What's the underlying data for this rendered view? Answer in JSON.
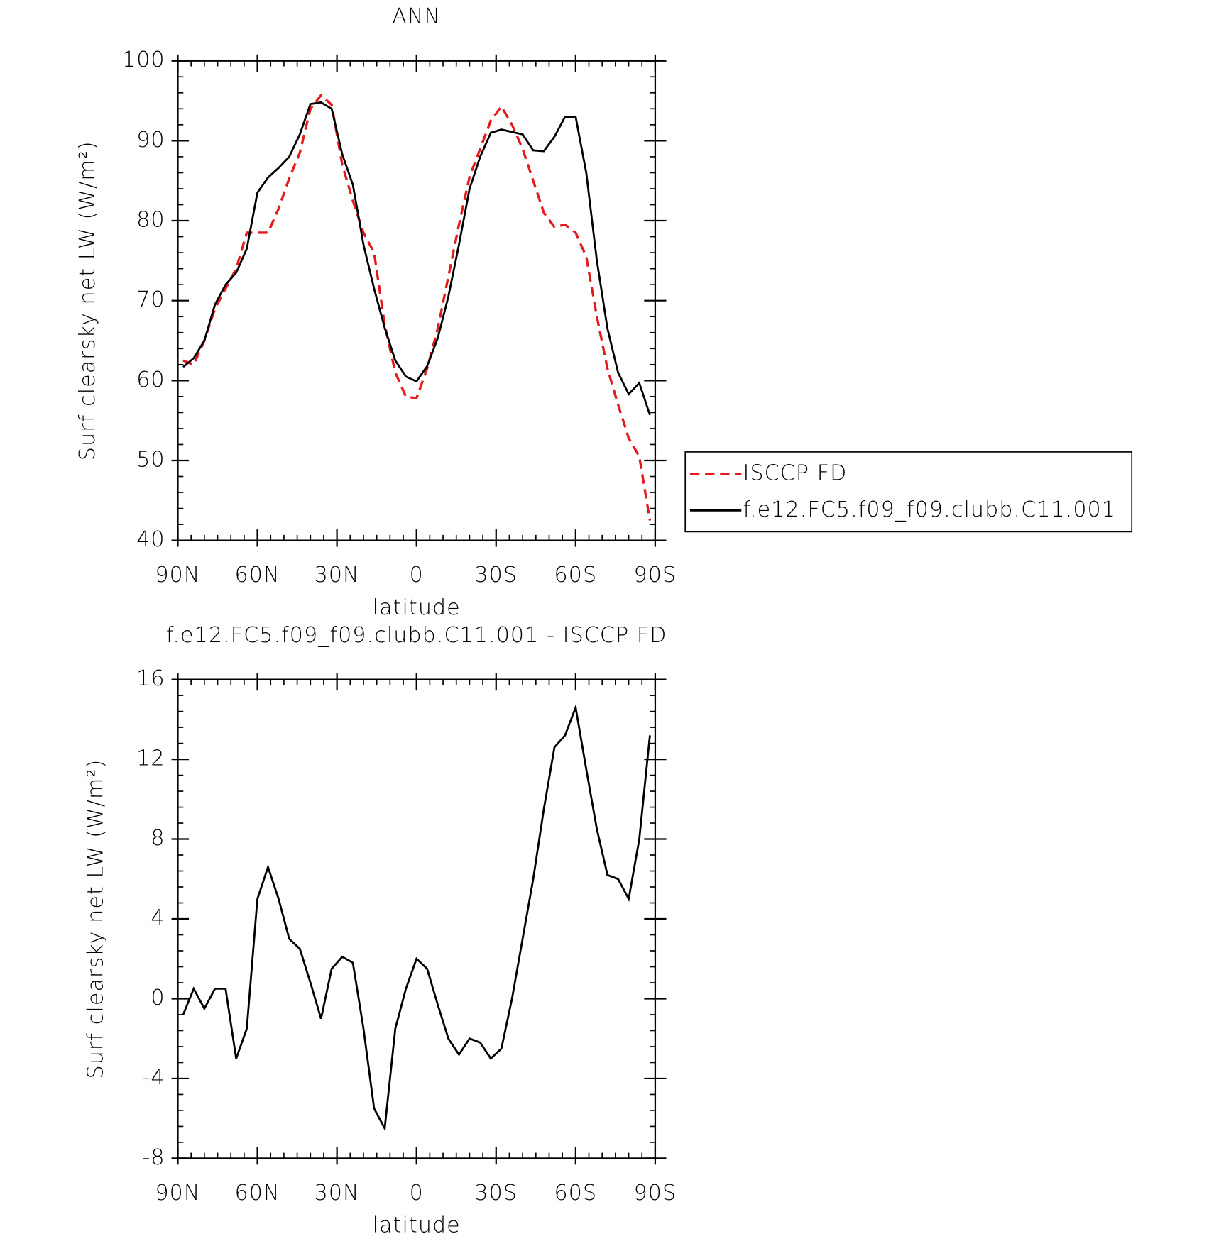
{
  "chart_data": [
    {
      "type": "line",
      "title": "ANN",
      "xlabel": "latitude",
      "ylabel": "Surf clearsky net LW (W/m²)",
      "x": [
        88,
        84,
        80,
        76,
        72,
        68,
        64,
        60,
        56,
        52,
        48,
        44,
        40,
        36,
        32,
        28,
        24,
        20,
        16,
        12,
        8,
        4,
        0,
        -4,
        -8,
        -12,
        -16,
        -20,
        -24,
        -28,
        -32,
        -36,
        -40,
        -44,
        -48,
        -52,
        -56,
        -60,
        -64,
        -68,
        -72,
        -76,
        -80,
        -84,
        -88
      ],
      "series": [
        {
          "name": "ISCCP FD",
          "color": "#e41a1c",
          "dash": true,
          "values": [
            62.5,
            62.0,
            65,
            69,
            71.5,
            74,
            78.5,
            78.5,
            78.5,
            81.5,
            85.3,
            88.5,
            94.0,
            95.7,
            94.5,
            87.0,
            82.5,
            78.5,
            76.0,
            67.0,
            61.0,
            58.0,
            57.8,
            61.5,
            66.5,
            73.0,
            79.5,
            85.5,
            89.0,
            92.5,
            94.3,
            92.0,
            89.0,
            85.0,
            81.0,
            79.2,
            79.5,
            78.5,
            75.5,
            68.0,
            61.5,
            57.0,
            52.8,
            50.5,
            42.5
          ]
        },
        {
          "name": "f.e12.FC5.f09_f09.clubb.C11.001",
          "color": "#000000",
          "dash": false,
          "values": [
            61.7,
            62.8,
            65,
            69.5,
            72.0,
            73.5,
            76.5,
            83.5,
            85.4,
            86.6,
            88.0,
            90.8,
            94.6,
            94.8,
            94.0,
            88.3,
            84.5,
            77.0,
            71.5,
            66.6,
            62.5,
            60.5,
            59.9,
            61.8,
            65.3,
            70.5,
            77.0,
            84.0,
            88.0,
            91.0,
            91.4,
            91.1,
            90.8,
            88.8,
            88.7,
            90.5,
            93.0,
            93.0,
            86.0,
            75.0,
            66.5,
            61.0,
            58.3,
            59.7,
            55.7
          ]
        }
      ],
      "xlim": [
        90,
        -90
      ],
      "xticks": [
        {
          "value": 90,
          "label": "90N"
        },
        {
          "value": 60,
          "label": "60N"
        },
        {
          "value": 30,
          "label": "30N"
        },
        0,
        {
          "value": -30,
          "label": "30S"
        },
        {
          "value": -60,
          "label": "60S"
        },
        {
          "value": -90,
          "label": "90S"
        }
      ],
      "ylim": [
        40,
        100
      ],
      "yticks": [
        40,
        50,
        60,
        70,
        80,
        90,
        100
      ],
      "legend": "right"
    },
    {
      "type": "line",
      "title": "f.e12.FC5.f09_f09.clubb.C11.001 - ISCCP FD",
      "xlabel": "latitude",
      "ylabel": "Surf clearsky net LW (W/m²)",
      "x": [
        88,
        84,
        80,
        76,
        72,
        68,
        64,
        60,
        56,
        52,
        48,
        44,
        40,
        36,
        32,
        28,
        24,
        20,
        16,
        12,
        8,
        4,
        0,
        -4,
        -8,
        -12,
        -16,
        -20,
        -24,
        -28,
        -32,
        -36,
        -40,
        -44,
        -48,
        -52,
        -56,
        -60,
        -64,
        -68,
        -72,
        -76,
        -80,
        -84,
        -88
      ],
      "series": [
        {
          "color": "#000000",
          "dash": false,
          "values": [
            -0.8,
            0.5,
            -0.5,
            0.5,
            0.5,
            -3.0,
            -1.5,
            5.0,
            6.6,
            5.0,
            3.0,
            2.5,
            0.8,
            -1.0,
            1.5,
            2.1,
            1.8,
            -1.5,
            -5.5,
            -6.5,
            -1.5,
            0.5,
            2.0,
            1.5,
            -0.3,
            -2.0,
            -2.8,
            -2.0,
            -2.2,
            -3.0,
            -2.5,
            0,
            3.0,
            6.0,
            9.5,
            12.6,
            13.2,
            14.6,
            11.5,
            8.5,
            6.2,
            6.0,
            5.0,
            8.0,
            13.2
          ]
        }
      ],
      "xlim": [
        90,
        -90
      ],
      "xticks": [
        {
          "value": 90,
          "label": "90N"
        },
        {
          "value": 60,
          "label": "60N"
        },
        {
          "value": 30,
          "label": "30N"
        },
        0,
        {
          "value": -30,
          "label": "30S"
        },
        {
          "value": -60,
          "label": "60S"
        },
        {
          "value": -90,
          "label": "90S"
        }
      ],
      "ylim": [
        -8,
        16
      ],
      "yticks": [
        -8,
        -4,
        0,
        4,
        8,
        12,
        16
      ]
    }
  ]
}
